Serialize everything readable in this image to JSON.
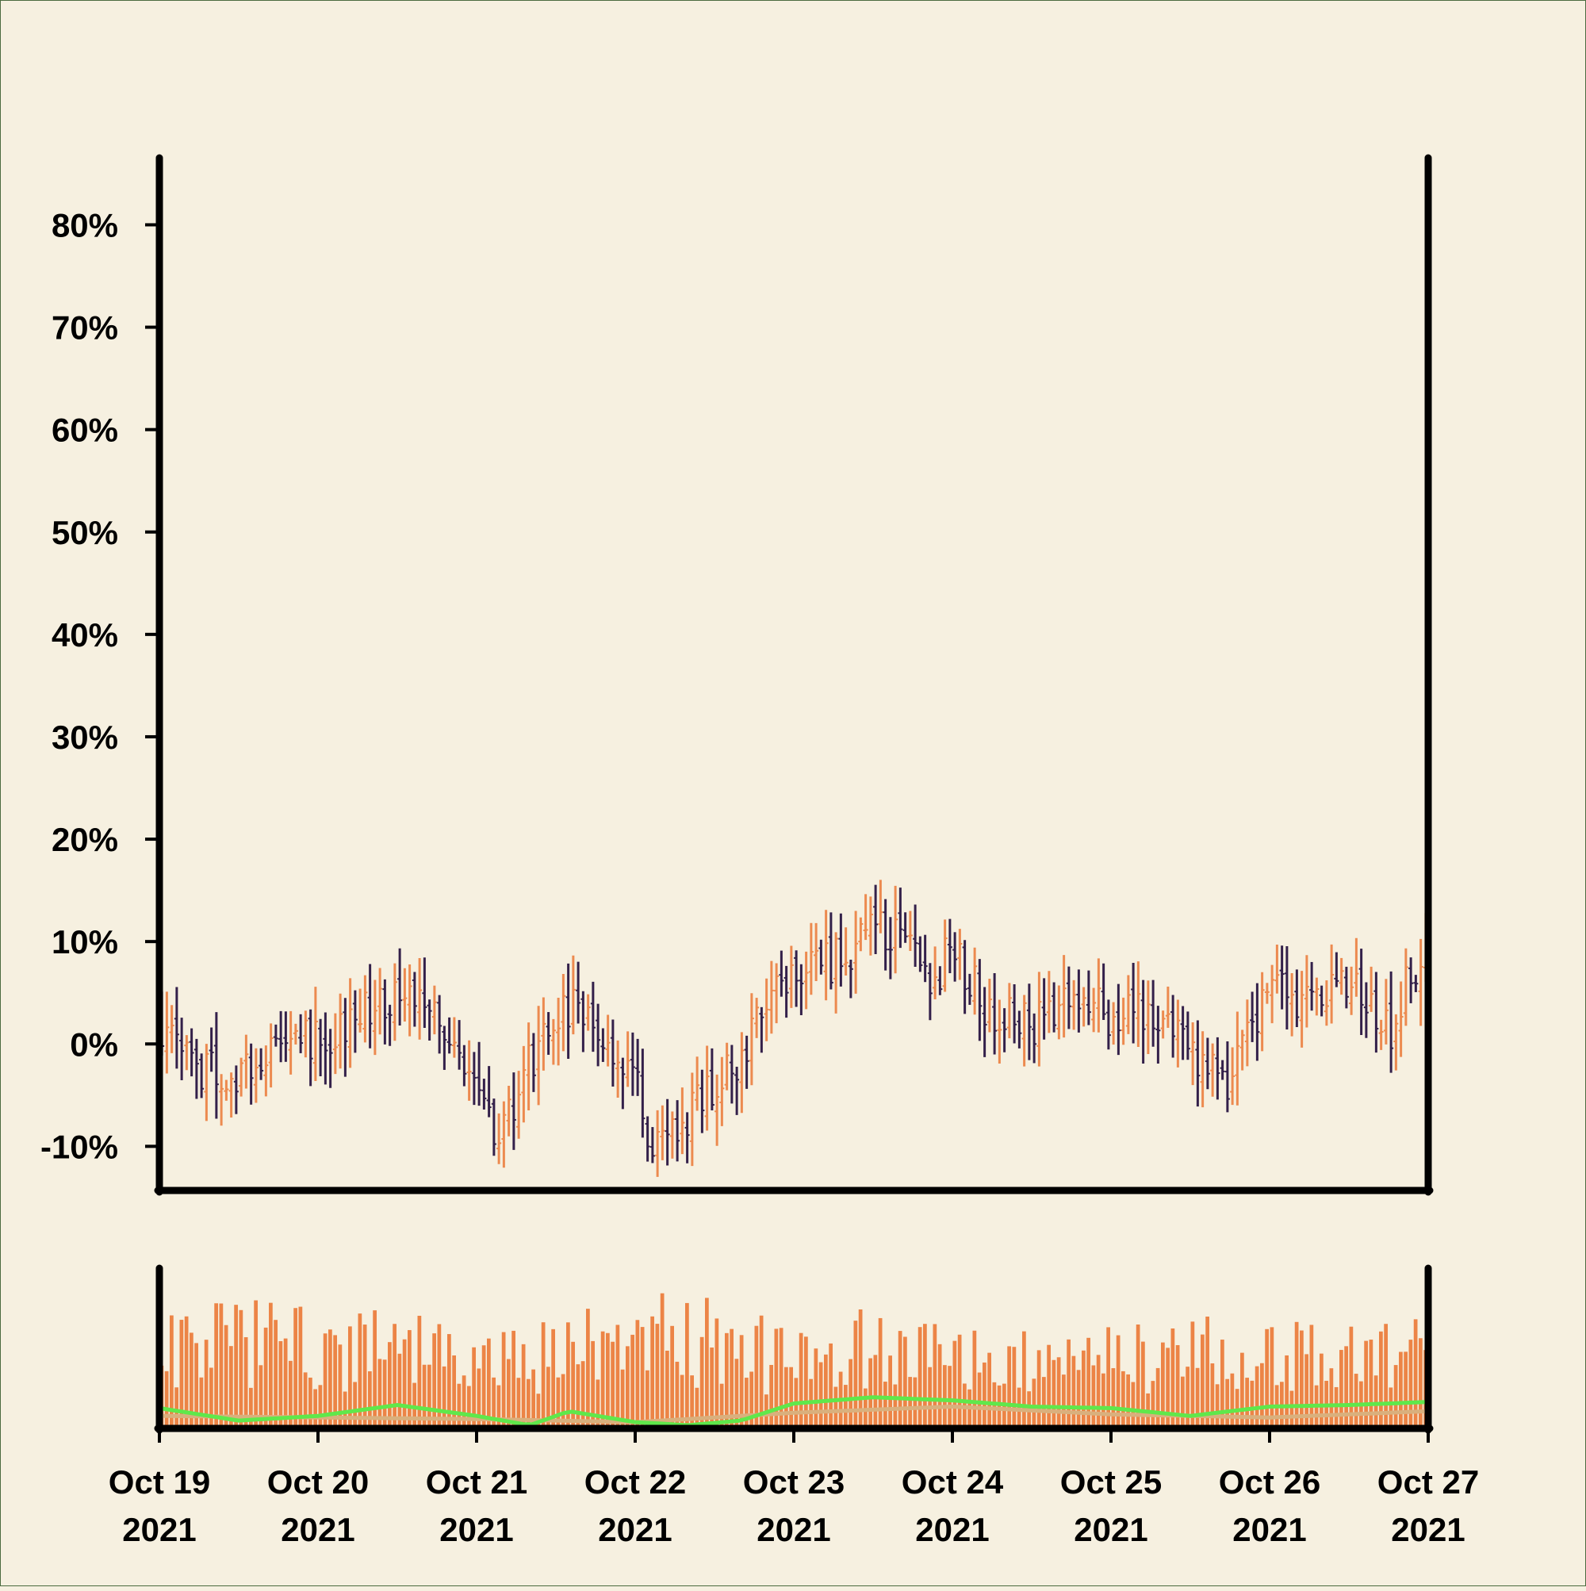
{
  "chart_data": {
    "type": "ohlc",
    "title": "",
    "xlabel": "",
    "ylabel": "",
    "x_start": "2021-10-19",
    "x_end": "2021-10-27",
    "bar_interval_minutes": 45,
    "ylim": [
      -14,
      86
    ],
    "grid": false,
    "legend": "none",
    "y_ticks": [
      "80%",
      "70%",
      "60%",
      "50%",
      "40%",
      "30%",
      "20%",
      "10%",
      "0%",
      "-10%"
    ],
    "y_tick_values": [
      80,
      70,
      60,
      50,
      40,
      30,
      20,
      10,
      0,
      -10
    ],
    "x_ticks": [
      {
        "date": "2021-10-19",
        "line1": "Oct 19",
        "line2": "2021"
      },
      {
        "date": "2021-10-20",
        "line1": "Oct 20",
        "line2": "2021"
      },
      {
        "date": "2021-10-21",
        "line1": "Oct 21",
        "line2": "2021"
      },
      {
        "date": "2021-10-22",
        "line1": "Oct 22",
        "line2": "2021"
      },
      {
        "date": "2021-10-23",
        "line1": "Oct 23",
        "line2": "2021"
      },
      {
        "date": "2021-10-24",
        "line1": "Oct 24",
        "line2": "2021"
      },
      {
        "date": "2021-10-25",
        "line1": "Oct 25",
        "line2": "2021"
      },
      {
        "date": "2021-10-26",
        "line1": "Oct 26",
        "line2": "2021"
      },
      {
        "date": "2021-10-27",
        "line1": "Oct 27",
        "line2": "2021"
      }
    ],
    "close_path": [
      {
        "x": "2021-10-19T00:00",
        "y": 2
      },
      {
        "x": "2021-10-19T06:00",
        "y": -2
      },
      {
        "x": "2021-10-19T12:00",
        "y": -4
      },
      {
        "x": "2021-10-19T18:00",
        "y": 1
      },
      {
        "x": "2021-10-20T00:00",
        "y": 0
      },
      {
        "x": "2021-10-20T06:00",
        "y": 3
      },
      {
        "x": "2021-10-20T12:00",
        "y": 5
      },
      {
        "x": "2021-10-20T18:00",
        "y": 4
      },
      {
        "x": "2021-10-21T00:00",
        "y": -4
      },
      {
        "x": "2021-10-21T03:00",
        "y": -11
      },
      {
        "x": "2021-10-21T08:00",
        "y": -2
      },
      {
        "x": "2021-10-21T14:00",
        "y": 4
      },
      {
        "x": "2021-10-21T20:00",
        "y": 1
      },
      {
        "x": "2021-10-22T00:00",
        "y": -4
      },
      {
        "x": "2021-10-22T03:00",
        "y": -11
      },
      {
        "x": "2021-10-22T08:00",
        "y": -7
      },
      {
        "x": "2021-10-22T14:00",
        "y": -3
      },
      {
        "x": "2021-10-22T20:00",
        "y": 3
      },
      {
        "x": "2021-10-23T00:00",
        "y": 8
      },
      {
        "x": "2021-10-23T06:00",
        "y": 8
      },
      {
        "x": "2021-10-23T12:00",
        "y": 11
      },
      {
        "x": "2021-10-23T16:00",
        "y": 10
      },
      {
        "x": "2021-10-23T20:00",
        "y": 6
      },
      {
        "x": "2021-10-24T00:00",
        "y": 9
      },
      {
        "x": "2021-10-24T06:00",
        "y": 3
      },
      {
        "x": "2021-10-24T12:00",
        "y": 2
      },
      {
        "x": "2021-10-24T18:00",
        "y": 4
      },
      {
        "x": "2021-10-25T00:00",
        "y": 3
      },
      {
        "x": "2021-10-25T06:00",
        "y": 3
      },
      {
        "x": "2021-10-25T12:00",
        "y": -1
      },
      {
        "x": "2021-10-25T18:00",
        "y": -4
      },
      {
        "x": "2021-10-26T00:00",
        "y": 6
      },
      {
        "x": "2021-10-26T06:00",
        "y": 4
      },
      {
        "x": "2021-10-26T12:00",
        "y": 6
      },
      {
        "x": "2021-10-26T18:00",
        "y": 1
      },
      {
        "x": "2021-10-27T00:00",
        "y": 11
      }
    ],
    "volume_ma_fast_path": [
      {
        "x": "2021-10-19T00:00",
        "y": 0.11
      },
      {
        "x": "2021-10-19T12:00",
        "y": 0.03
      },
      {
        "x": "2021-10-20T00:00",
        "y": 0.06
      },
      {
        "x": "2021-10-20T12:00",
        "y": 0.13
      },
      {
        "x": "2021-10-21T00:00",
        "y": 0.06
      },
      {
        "x": "2021-10-21T08:00",
        "y": 0.0
      },
      {
        "x": "2021-10-21T14:00",
        "y": 0.09
      },
      {
        "x": "2021-10-22T00:00",
        "y": 0.02
      },
      {
        "x": "2021-10-22T08:00",
        "y": 0.0
      },
      {
        "x": "2021-10-22T16:00",
        "y": 0.03
      },
      {
        "x": "2021-10-23T00:00",
        "y": 0.14
      },
      {
        "x": "2021-10-23T12:00",
        "y": 0.18
      },
      {
        "x": "2021-10-24T00:00",
        "y": 0.16
      },
      {
        "x": "2021-10-24T12:00",
        "y": 0.12
      },
      {
        "x": "2021-10-25T00:00",
        "y": 0.11
      },
      {
        "x": "2021-10-25T12:00",
        "y": 0.06
      },
      {
        "x": "2021-10-26T00:00",
        "y": 0.12
      },
      {
        "x": "2021-10-26T12:00",
        "y": 0.13
      },
      {
        "x": "2021-10-27T00:00",
        "y": 0.15
      }
    ],
    "volume_ma_slow_path": [
      {
        "x": "2021-10-19T00:00",
        "y": 0.06
      },
      {
        "x": "2021-10-20T00:00",
        "y": 0.05
      },
      {
        "x": "2021-10-21T00:00",
        "y": 0.04
      },
      {
        "x": "2021-10-22T00:00",
        "y": 0.02
      },
      {
        "x": "2021-10-23T00:00",
        "y": 0.08
      },
      {
        "x": "2021-10-24T00:00",
        "y": 0.12
      },
      {
        "x": "2021-10-25T00:00",
        "y": 0.07
      },
      {
        "x": "2021-10-26T00:00",
        "y": 0.05
      },
      {
        "x": "2021-10-27T00:00",
        "y": 0.09
      }
    ],
    "volume_level_path": [
      {
        "x": "2021-10-19T00:00",
        "y": 0.55
      },
      {
        "x": "2021-10-19T12:00",
        "y": 0.7
      },
      {
        "x": "2021-10-20T00:00",
        "y": 0.6
      },
      {
        "x": "2021-10-20T12:00",
        "y": 0.62
      },
      {
        "x": "2021-10-21T00:00",
        "y": 0.45
      },
      {
        "x": "2021-10-21T12:00",
        "y": 0.55
      },
      {
        "x": "2021-10-22T00:00",
        "y": 0.72
      },
      {
        "x": "2021-10-22T12:00",
        "y": 0.66
      },
      {
        "x": "2021-10-23T00:00",
        "y": 0.5
      },
      {
        "x": "2021-10-23T12:00",
        "y": 0.62
      },
      {
        "x": "2021-10-24T00:00",
        "y": 0.5
      },
      {
        "x": "2021-10-24T12:00",
        "y": 0.55
      },
      {
        "x": "2021-10-25T00:00",
        "y": 0.52
      },
      {
        "x": "2021-10-25T12:00",
        "y": 0.58
      },
      {
        "x": "2021-10-26T00:00",
        "y": 0.56
      },
      {
        "x": "2021-10-26T12:00",
        "y": 0.55
      },
      {
        "x": "2021-10-27T00:00",
        "y": 0.6
      }
    ],
    "colors": {
      "background": "#f6f0e0",
      "up": "#ec8a4f",
      "down": "#33204a",
      "volume": "#ec8446",
      "ma_fast": "#5fe84b",
      "ma_slow": "#d9b07d",
      "axis": "#000000"
    }
  }
}
